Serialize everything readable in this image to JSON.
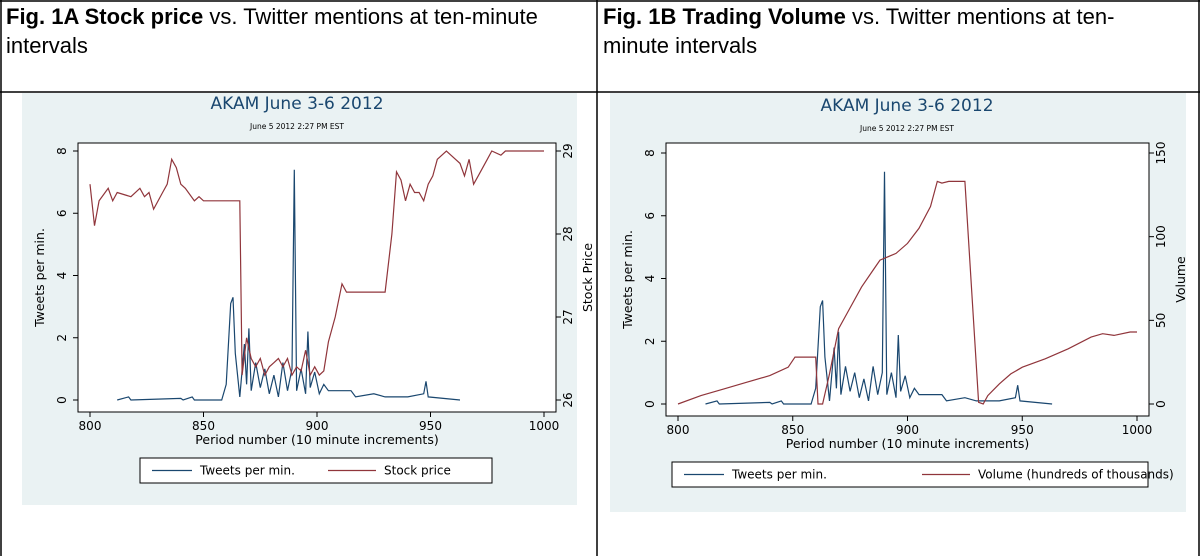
{
  "chart_data": [
    {
      "type": "line",
      "caption_bold": "Fig. 1A Stock price",
      "caption": "vs. Twitter mentions at ten-minute intervals",
      "title": "AKAM June 3-6 2012",
      "subtitle": "June 5 2012 2:27 PM EST",
      "x_label": "Period number (10 minute increments)",
      "y_label": "Tweets per min.",
      "y2_label": "Stock Price",
      "xlim": [
        800,
        1000
      ],
      "xticks": [
        800,
        850,
        900,
        950,
        1000
      ],
      "ylim": [
        0,
        8
      ],
      "yticks": [
        0,
        2,
        4,
        6,
        8
      ],
      "y2lim": [
        26,
        29
      ],
      "y2ticks": [
        26,
        27,
        28,
        29
      ],
      "legend": "bottom",
      "series": [
        {
          "name": "Tweets per min.",
          "color": "#1a476f",
          "x": [
            812,
            817,
            818,
            840,
            841,
            845,
            846,
            858,
            860,
            862,
            863,
            864,
            866,
            868,
            869,
            870,
            871,
            873,
            875,
            877,
            879,
            881,
            883,
            885,
            887,
            889,
            890,
            891,
            893,
            895,
            896,
            897,
            899,
            901,
            903,
            905,
            915,
            917,
            925,
            930,
            940,
            947,
            948,
            949,
            963
          ],
          "values": [
            0,
            0.1,
            0,
            0.05,
            0,
            0.1,
            0,
            0,
            0.5,
            3.1,
            3.3,
            1.5,
            0.1,
            1.8,
            0.5,
            2.3,
            0.3,
            1.2,
            0.4,
            1.0,
            0.2,
            0.8,
            0.1,
            1.2,
            0.3,
            1.0,
            7.4,
            0.3,
            1.0,
            0.2,
            2.2,
            0.4,
            0.9,
            0.2,
            0.5,
            0.3,
            0.3,
            0.1,
            0.2,
            0.1,
            0.1,
            0.2,
            0.6,
            0.1,
            0
          ]
        },
        {
          "name": "Stock price",
          "color": "#90353b",
          "axis": "y2",
          "x": [
            800,
            802,
            804,
            808,
            810,
            812,
            818,
            822,
            824,
            826,
            828,
            832,
            834,
            836,
            838,
            840,
            842,
            846,
            848,
            850,
            866,
            867,
            869,
            871,
            873,
            875,
            877,
            879,
            881,
            883,
            885,
            887,
            889,
            891,
            893,
            895,
            897,
            899,
            901,
            903,
            905,
            908,
            911,
            913,
            930,
            933,
            935,
            937,
            939,
            941,
            943,
            945,
            947,
            949,
            951,
            953,
            957,
            961,
            963,
            965,
            967,
            969,
            971,
            975,
            977,
            981,
            983,
            1000
          ],
          "values": [
            28.6,
            28.1,
            28.4,
            28.55,
            28.4,
            28.5,
            28.45,
            28.55,
            28.45,
            28.5,
            28.3,
            28.5,
            28.6,
            28.9,
            28.8,
            28.6,
            28.55,
            28.4,
            28.45,
            28.4,
            28.4,
            26.3,
            26.75,
            26.5,
            26.4,
            26.5,
            26.3,
            26.4,
            26.45,
            26.5,
            26.4,
            26.5,
            26.3,
            26.4,
            26.35,
            26.6,
            26.3,
            26.4,
            26.3,
            26.35,
            26.7,
            27.0,
            27.4,
            27.3,
            27.3,
            28.0,
            28.75,
            28.65,
            28.4,
            28.6,
            28.5,
            28.5,
            28.4,
            28.6,
            28.7,
            28.9,
            29.0,
            28.9,
            28.85,
            28.7,
            28.9,
            28.6,
            28.7,
            28.9,
            29.0,
            28.95,
            29.0,
            29.0
          ]
        }
      ]
    },
    {
      "type": "line",
      "caption_bold": "Fig. 1B Trading Volume",
      "caption": "vs. Twitter mentions at ten-minute intervals",
      "title": "AKAM June 3-6 2012",
      "subtitle": "June 5 2012 2:27 PM EST",
      "x_label": "Period number (10 minute increments)",
      "y_label": "Tweets per min.",
      "y2_label": "Volume",
      "xlim": [
        800,
        1000
      ],
      "xticks": [
        800,
        850,
        900,
        950,
        1000
      ],
      "ylim": [
        0,
        8
      ],
      "yticks": [
        0,
        2,
        4,
        6,
        8
      ],
      "y2lim": [
        0,
        150
      ],
      "y2ticks": [
        0,
        50,
        100,
        150
      ],
      "legend": "bottom",
      "series": [
        {
          "name": "Tweets per min.",
          "color": "#1a476f",
          "x": [
            812,
            817,
            818,
            840,
            841,
            845,
            846,
            858,
            860,
            862,
            863,
            864,
            866,
            868,
            869,
            870,
            871,
            873,
            875,
            877,
            879,
            881,
            883,
            885,
            887,
            889,
            890,
            891,
            893,
            895,
            896,
            897,
            899,
            901,
            903,
            905,
            915,
            917,
            925,
            930,
            940,
            947,
            948,
            949,
            963
          ],
          "values": [
            0,
            0.1,
            0,
            0.05,
            0,
            0.1,
            0,
            0,
            0.5,
            3.1,
            3.3,
            1.5,
            0.1,
            1.8,
            0.5,
            2.3,
            0.3,
            1.2,
            0.4,
            1.0,
            0.2,
            0.8,
            0.1,
            1.2,
            0.3,
            1.0,
            7.4,
            0.3,
            1.0,
            0.2,
            2.2,
            0.4,
            0.9,
            0.2,
            0.5,
            0.3,
            0.3,
            0.1,
            0.2,
            0.1,
            0.1,
            0.2,
            0.6,
            0.1,
            0
          ]
        },
        {
          "name": "Volume (hundreds of thousands)",
          "color": "#90353b",
          "axis": "y2",
          "x": [
            800,
            810,
            820,
            830,
            840,
            848,
            851,
            858,
            860,
            861,
            863,
            866,
            870,
            874,
            880,
            885,
            888,
            895,
            900,
            905,
            910,
            913,
            915,
            918,
            925,
            931,
            933,
            935,
            940,
            945,
            950,
            960,
            970,
            980,
            985,
            990,
            997,
            1000
          ],
          "values": [
            0,
            5,
            9,
            13,
            17,
            22,
            28,
            28,
            28,
            0,
            0,
            18,
            45,
            55,
            70,
            80,
            86,
            90,
            96,
            105,
            118,
            133,
            132,
            133,
            133,
            1,
            0,
            5,
            12,
            18,
            22,
            27,
            33,
            40,
            42,
            41,
            43,
            43
          ]
        }
      ]
    }
  ]
}
